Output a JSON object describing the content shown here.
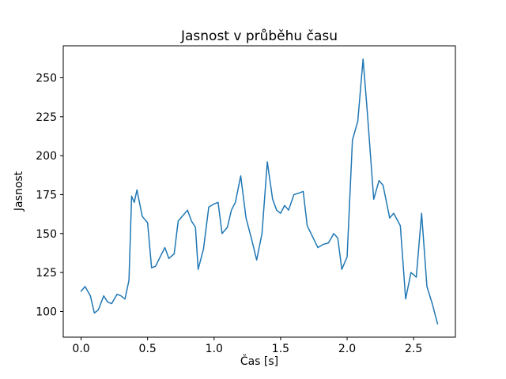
{
  "figure": {
    "background": "#ffffff"
  },
  "chart_data": {
    "type": "line",
    "title": "Jasnost v průběhu času",
    "xlabel": "Čas [s]",
    "ylabel": "Jasnost",
    "line_color": "#1f77b4",
    "axis_color": "#000000",
    "grid": false,
    "legend": "none",
    "xlim": [
      -0.134,
      2.814
    ],
    "ylim": [
      83.5,
      270.5
    ],
    "x_ticks": [
      {
        "value": 0.0,
        "label": "0.0"
      },
      {
        "value": 0.5,
        "label": "0.5"
      },
      {
        "value": 1.0,
        "label": "1.0"
      },
      {
        "value": 1.5,
        "label": "1.5"
      },
      {
        "value": 2.0,
        "label": "2.0"
      },
      {
        "value": 2.5,
        "label": "2.5"
      }
    ],
    "y_ticks": [
      {
        "value": 100,
        "label": "100"
      },
      {
        "value": 125,
        "label": "125"
      },
      {
        "value": 150,
        "label": "150"
      },
      {
        "value": 175,
        "label": "175"
      },
      {
        "value": 200,
        "label": "200"
      },
      {
        "value": 225,
        "label": "225"
      },
      {
        "value": 250,
        "label": "250"
      }
    ],
    "points": [
      [
        0.0,
        113
      ],
      [
        0.03,
        116
      ],
      [
        0.07,
        110
      ],
      [
        0.1,
        99
      ],
      [
        0.13,
        101
      ],
      [
        0.17,
        110
      ],
      [
        0.2,
        106
      ],
      [
        0.23,
        105
      ],
      [
        0.27,
        111
      ],
      [
        0.3,
        110
      ],
      [
        0.33,
        108
      ],
      [
        0.36,
        120
      ],
      [
        0.38,
        174
      ],
      [
        0.4,
        170
      ],
      [
        0.42,
        178
      ],
      [
        0.46,
        161
      ],
      [
        0.5,
        157
      ],
      [
        0.53,
        128
      ],
      [
        0.56,
        129
      ],
      [
        0.6,
        136
      ],
      [
        0.63,
        141
      ],
      [
        0.66,
        134
      ],
      [
        0.7,
        137
      ],
      [
        0.73,
        158
      ],
      [
        0.77,
        162
      ],
      [
        0.8,
        165
      ],
      [
        0.83,
        158
      ],
      [
        0.86,
        154
      ],
      [
        0.88,
        127
      ],
      [
        0.92,
        140
      ],
      [
        0.96,
        167
      ],
      [
        1.0,
        169
      ],
      [
        1.03,
        170
      ],
      [
        1.06,
        150
      ],
      [
        1.1,
        154
      ],
      [
        1.13,
        165
      ],
      [
        1.16,
        170
      ],
      [
        1.2,
        187
      ],
      [
        1.24,
        160
      ],
      [
        1.28,
        147
      ],
      [
        1.32,
        133
      ],
      [
        1.36,
        150
      ],
      [
        1.4,
        196
      ],
      [
        1.44,
        172
      ],
      [
        1.47,
        165
      ],
      [
        1.5,
        163
      ],
      [
        1.53,
        168
      ],
      [
        1.56,
        165
      ],
      [
        1.6,
        175
      ],
      [
        1.64,
        176
      ],
      [
        1.67,
        177
      ],
      [
        1.7,
        155
      ],
      [
        1.74,
        148
      ],
      [
        1.78,
        141
      ],
      [
        1.82,
        143
      ],
      [
        1.86,
        144
      ],
      [
        1.9,
        150
      ],
      [
        1.93,
        147
      ],
      [
        1.96,
        127
      ],
      [
        2.0,
        135
      ],
      [
        2.04,
        210
      ],
      [
        2.08,
        222
      ],
      [
        2.12,
        262
      ],
      [
        2.15,
        230
      ],
      [
        2.2,
        172
      ],
      [
        2.24,
        184
      ],
      [
        2.27,
        181
      ],
      [
        2.32,
        160
      ],
      [
        2.35,
        163
      ],
      [
        2.4,
        155
      ],
      [
        2.44,
        108
      ],
      [
        2.48,
        125
      ],
      [
        2.52,
        122
      ],
      [
        2.56,
        163
      ],
      [
        2.6,
        116
      ],
      [
        2.64,
        105
      ],
      [
        2.68,
        92
      ]
    ]
  }
}
